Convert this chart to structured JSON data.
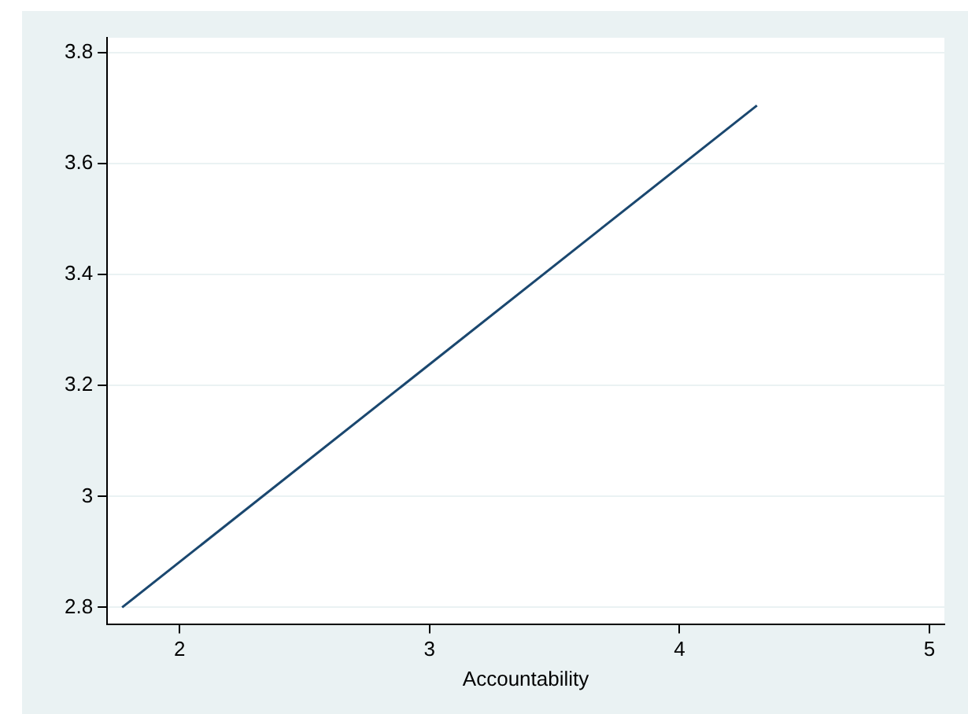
{
  "chart_data": {
    "type": "line",
    "xlabel": "Accountability",
    "series": [
      {
        "color": "#1a476f",
        "x": [
          1.77,
          4.31
        ],
        "values": [
          2.8,
          3.705
        ]
      }
    ],
    "xlim": [
      1.71,
      5.06
    ],
    "xticks": [
      2,
      3,
      4,
      5
    ],
    "ylim": [
      2.77,
      3.827
    ],
    "yticks": [
      2.8,
      {
        "value": 3,
        "label": "3"
      },
      3.2,
      3.4,
      3.6,
      3.8
    ],
    "grid": "y",
    "legend": false,
    "marker": "none",
    "line_style": "solid"
  }
}
